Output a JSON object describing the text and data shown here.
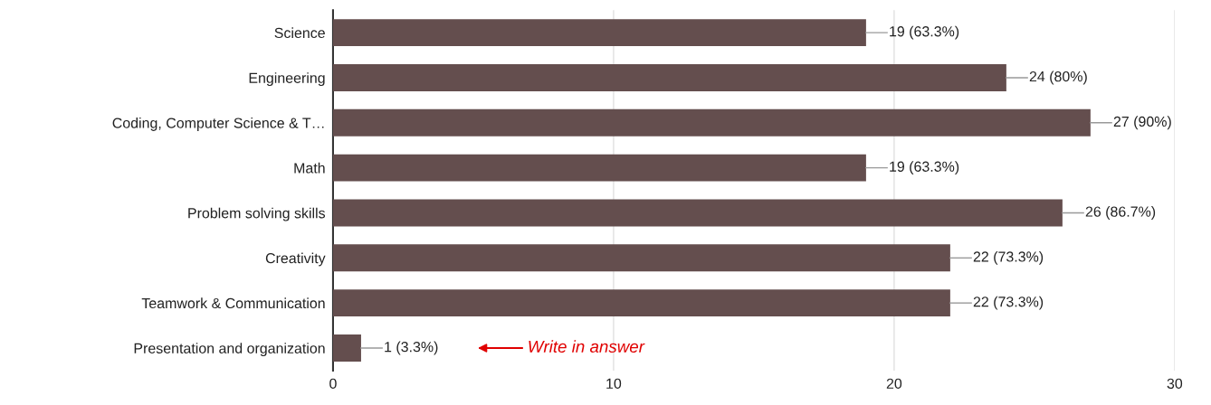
{
  "chart_data": {
    "type": "bar",
    "orientation": "horizontal",
    "categories": [
      "Science",
      "Engineering",
      "Coding, Computer Science & T…",
      "Math",
      "Problem solving skills",
      "Creativity",
      "Teamwork & Communication",
      "Presentation and organization"
    ],
    "values": [
      19,
      24,
      27,
      19,
      26,
      22,
      22,
      1
    ],
    "value_labels": [
      "19 (63.3%)",
      "24 (80%)",
      "27 (90%)",
      "19 (63.3%)",
      "26 (86.7%)",
      "22 (73.3%)",
      "22 (73.3%)",
      "1 (3.3%)"
    ],
    "color": "#644e4e",
    "xlim": [
      0,
      30
    ],
    "xticks": [
      0,
      10,
      20,
      30
    ],
    "grid": "x",
    "annotations": [
      "Write in answer"
    ]
  }
}
